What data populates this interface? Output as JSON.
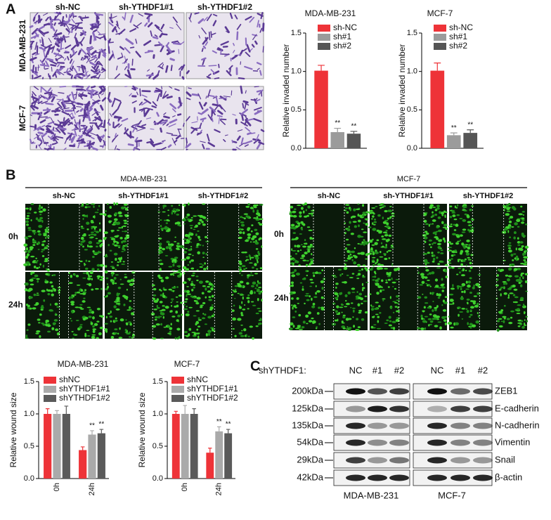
{
  "panels": {
    "a": "A",
    "b": "B",
    "c": "C"
  },
  "invasion": {
    "rows": [
      "MDA-MB-231",
      "MCF-7"
    ],
    "columns": [
      "sh-NC",
      "sh-YTHDF1#1",
      "sh-YTHDF1#2"
    ]
  },
  "wound": {
    "groups": [
      {
        "title": "MDA-MB-231",
        "columns": [
          "sh-NC",
          "sh-YTHDF1#1",
          "sh-YTHDF1#2"
        ]
      },
      {
        "title": "MCF-7",
        "columns": [
          "sh-NC",
          "sh-YTHDF1#1",
          "sh-YTHDF1#2"
        ]
      }
    ],
    "rows": [
      "0h",
      "24h"
    ]
  },
  "western": {
    "label": "shYTHDF1:",
    "lanes": [
      "NC",
      "#1",
      "#2",
      "NC",
      "#1",
      "#2"
    ],
    "rows": [
      {
        "size": "200kDa",
        "protein": "ZEB1"
      },
      {
        "size": "125kDa",
        "protein": "E-cadherin"
      },
      {
        "size": "135kDa",
        "protein": "N-cadherin"
      },
      {
        "size": "54kDa",
        "protein": "Vimentin"
      },
      {
        "size": "29kDa",
        "protein": "Snail"
      },
      {
        "size": "42kDa",
        "protein": "β-actin"
      }
    ],
    "cells": [
      "MDA-MB-231",
      "MCF-7"
    ]
  },
  "chart_data": [
    {
      "type": "bar",
      "title": "MDA-MB-231",
      "ylabel": "Relative invaded number",
      "ylim": [
        0,
        1.5
      ],
      "yticks": [
        {
          "value": 0,
          "label": "0.0"
        },
        {
          "value": 0.5,
          "label": "0.5"
        },
        {
          "value": 1,
          "label": "1.0"
        },
        {
          "value": 1.5,
          "label": "1.5"
        }
      ],
      "series": [
        {
          "name": "sh-NC",
          "color": "#ee3338",
          "values": [
            1.01
          ],
          "errors": [
            0.07
          ]
        },
        {
          "name": "sh#1",
          "color": "#9b9b9b",
          "values": [
            0.21
          ],
          "errors": [
            0.05
          ],
          "annotations": [
            "**"
          ]
        },
        {
          "name": "sh#2",
          "color": "#555555",
          "values": [
            0.19
          ],
          "errors": [
            0.03
          ],
          "annotations": [
            "**"
          ]
        }
      ]
    },
    {
      "type": "bar",
      "title": "MCF-7",
      "ylabel": "Relative invaded number",
      "ylim": [
        0,
        1.5
      ],
      "yticks": [
        {
          "value": 0,
          "label": "0.0"
        },
        {
          "value": 0.5,
          "label": "0.5"
        },
        {
          "value": 1,
          "label": "1.0"
        },
        {
          "value": 1.5,
          "label": "1.5"
        }
      ],
      "series": [
        {
          "name": "sh-NC",
          "color": "#ee3338",
          "values": [
            1.01
          ],
          "errors": [
            0.1
          ]
        },
        {
          "name": "sh#1",
          "color": "#9b9b9b",
          "values": [
            0.17
          ],
          "errors": [
            0.03
          ],
          "annotations": [
            "**"
          ]
        },
        {
          "name": "sh#2",
          "color": "#555555",
          "values": [
            0.2
          ],
          "errors": [
            0.04
          ],
          "annotations": [
            "**"
          ]
        }
      ]
    },
    {
      "type": "bar",
      "title": "MDA-MB-231",
      "ylabel": "Relative wound size",
      "categories": [
        "0h",
        "24h"
      ],
      "ylim": [
        0,
        1.5
      ],
      "yticks": [
        {
          "value": 0,
          "label": "0.0"
        },
        {
          "value": 0.5,
          "label": "0.5"
        },
        {
          "value": 1,
          "label": "1.0"
        },
        {
          "value": 1.5,
          "label": "1.5"
        }
      ],
      "series": [
        {
          "name": "shNC",
          "color": "#ee3338",
          "values": [
            1.0,
            0.44
          ],
          "errors": [
            0.08,
            0.05
          ]
        },
        {
          "name": "shYTHDF1#1",
          "color": "#aaaaaa",
          "values": [
            1.0,
            0.68
          ],
          "errors": [
            0.05,
            0.06
          ],
          "annotations": [
            null,
            "**"
          ]
        },
        {
          "name": "shYTHDF1#2",
          "color": "#5a5a5a",
          "values": [
            1.0,
            0.7
          ],
          "errors": [
            0.12,
            0.06
          ],
          "annotations": [
            null,
            "**"
          ]
        }
      ]
    },
    {
      "type": "bar",
      "title": "MCF-7",
      "ylabel": "Relative wound size",
      "categories": [
        "0h",
        "24h"
      ],
      "ylim": [
        0,
        1.5
      ],
      "yticks": [
        {
          "value": 0,
          "label": "0.0"
        },
        {
          "value": 0.5,
          "label": "0.5"
        },
        {
          "value": 1,
          "label": "1.0"
        },
        {
          "value": 1.5,
          "label": "1.5"
        }
      ],
      "series": [
        {
          "name": "shNC",
          "color": "#ee3338",
          "values": [
            1.0,
            0.4
          ],
          "errors": [
            0.04,
            0.07
          ]
        },
        {
          "name": "shYTHDF1#1",
          "color": "#aaaaaa",
          "values": [
            1.0,
            0.73
          ],
          "errors": [
            0.13,
            0.07
          ],
          "annotations": [
            null,
            "**"
          ]
        },
        {
          "name": "shYTHDF1#2",
          "color": "#5a5a5a",
          "values": [
            1.0,
            0.7
          ],
          "errors": [
            0.08,
            0.06
          ],
          "annotations": [
            null,
            "**"
          ]
        }
      ]
    }
  ]
}
